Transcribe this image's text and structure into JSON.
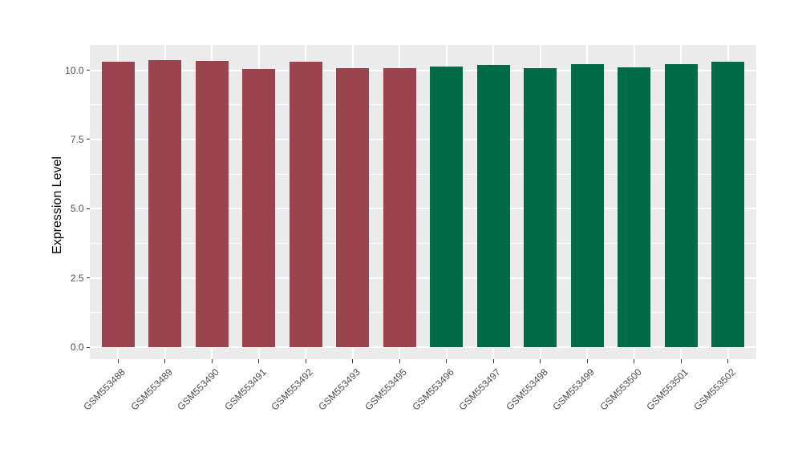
{
  "chart_data": {
    "type": "bar",
    "title": "",
    "xlabel": "",
    "ylabel": "Expression Level",
    "categories": [
      "GSM553488",
      "GSM553489",
      "GSM553490",
      "GSM553491",
      "GSM553492",
      "GSM553493",
      "GSM553495",
      "GSM553496",
      "GSM553497",
      "GSM553498",
      "GSM553499",
      "GSM553500",
      "GSM553501",
      "GSM553502"
    ],
    "values": [
      10.3,
      10.36,
      10.33,
      10.05,
      10.31,
      10.08,
      10.07,
      10.13,
      10.19,
      10.07,
      10.22,
      10.1,
      10.23,
      10.31
    ],
    "bar_colors": [
      "#9B4450",
      "#9B4450",
      "#9B4450",
      "#9B4450",
      "#9B4450",
      "#9B4450",
      "#9B4450",
      "#006B47",
      "#006B47",
      "#006B47",
      "#006B47",
      "#006B47",
      "#006B47",
      "#006B47"
    ],
    "group_colors": {
      "group1": "#9B4450",
      "group2": "#006B47"
    },
    "y_tick_labels": [
      "0.0",
      "2.5",
      "5.0",
      "7.5",
      "10.0"
    ],
    "y_tick_values": [
      0,
      2.5,
      5,
      7.5,
      10
    ],
    "minor_gridline_values": [
      1.25,
      3.75,
      6.25,
      8.75
    ],
    "ylim": [
      -0.434,
      10.915
    ],
    "grid": true,
    "legend_position": "none",
    "panel_background": "#EBEBEB",
    "gridline_color": "#FFFFFF",
    "axis_text_color": "#4D4D4D",
    "bar_value_axis_baseline": 0
  }
}
